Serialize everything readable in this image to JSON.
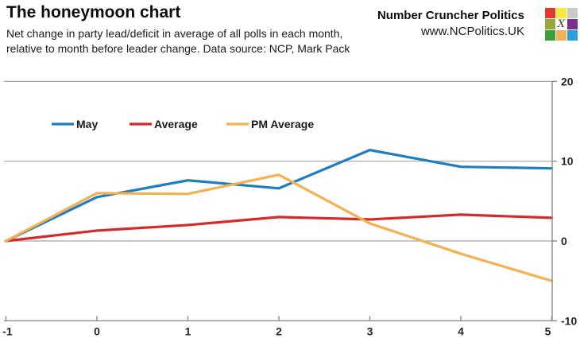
{
  "header": {
    "title": "The honeymoon chart",
    "subtitle_line1": "Net change in party lead/deficit in average of all polls in each month,",
    "subtitle_line2": "relative to month before leader change. Data source: NCP, Mark Pack",
    "brand_name": "Number Cruncher Politics",
    "brand_url": "www.NCPolitics.UK",
    "logo_letter": "X",
    "logo_colors": [
      [
        "#e0392e",
        "#f6eb3c",
        "#c9c9c9"
      ],
      [
        "#96a83b",
        "#ffffff",
        "#7b2f8e"
      ],
      [
        "#3ba03c",
        "#efb357",
        "#2b9fd8"
      ]
    ]
  },
  "chart_data": {
    "type": "line",
    "x": [
      -1,
      0,
      1,
      2,
      3,
      4,
      5
    ],
    "x_ticks": [
      "-1",
      "0",
      "1",
      "2",
      "3",
      "4",
      "5"
    ],
    "series": [
      {
        "name": "May",
        "color": "#1e7ec0",
        "values": [
          0,
          5.5,
          7.6,
          6.6,
          11.4,
          9.3,
          9.1
        ]
      },
      {
        "name": "Average",
        "color": "#d62a2a",
        "values": [
          0,
          1.3,
          2.0,
          3.0,
          2.7,
          3.3,
          2.9
        ]
      },
      {
        "name": "PM Average",
        "color": "#f5b04f",
        "values": [
          0,
          6.0,
          5.9,
          8.3,
          2.2,
          -1.6,
          -5.0
        ]
      }
    ],
    "y_ticks": [
      "20",
      "10",
      "0",
      "-10"
    ],
    "y_tick_values": [
      20,
      10,
      0,
      -10
    ],
    "ylim": [
      -10,
      20
    ],
    "xlim": [
      -1,
      5
    ],
    "grid": "horizontal",
    "legend_position": "top-left-inside",
    "grid_color": "#a6a6a6",
    "axis_color": "#8c8c8c",
    "tick_label_color": "#262626"
  }
}
